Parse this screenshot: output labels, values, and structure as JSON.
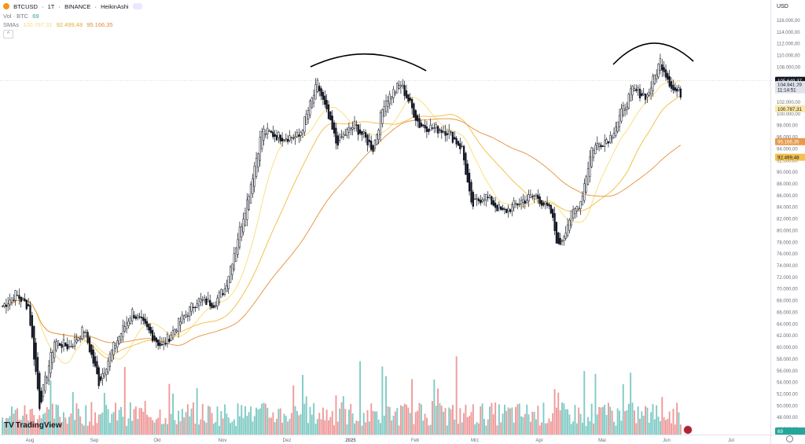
{
  "header": {
    "symbol": "BTCUSD",
    "interval": "1T",
    "exchange": "BINANCE",
    "chart_style": "HeikinAshi",
    "separator": "·",
    "vol_label": "Vol · BTC",
    "vol_value": "69",
    "sma_label": "SMAs",
    "sma_values": [
      "100.787,31",
      "92.499,48",
      "95.166,35"
    ]
  },
  "currency": "USD",
  "brand": "TradingView",
  "colors": {
    "up": "#26a69a",
    "down": "#ef5350",
    "candle": "#131722",
    "sma50": "#f9e07f",
    "sma100": "#f2c14e",
    "sma200": "#e69a4c",
    "vol_up": "#80cbc4",
    "vol_down": "#ef9a9a"
  },
  "icons": [
    "bitcoin-coin-icon",
    "eye-icon",
    "collapse-icon",
    "settings-icon",
    "flag-icon"
  ],
  "chart_data": {
    "type": "candlestick",
    "style": "HeikinAshi",
    "x_labels": [
      "Aug",
      "Sep",
      "Okt",
      "Nov",
      "Dez",
      "2025",
      "Feb",
      "Mrz",
      "Apr",
      "Mai",
      "Jun",
      "Jul"
    ],
    "y_ticks": [
      "116.000,00",
      "114.000,00",
      "112.000,00",
      "110.000,00",
      "108.000,00",
      "106.000,00",
      "104.000,00",
      "102.000,00",
      "100.000,00",
      "98.000,00",
      "96.000,00",
      "94.000,00",
      "92.000,00",
      "90.000,00",
      "88.000,00",
      "86.000,00",
      "84.000,00",
      "82.000,00",
      "80.000,00",
      "78.000,00",
      "76.000,00",
      "74.000,00",
      "72.000,00",
      "70.000,00",
      "68.000,00",
      "66.000,00",
      "64.000,00",
      "62.000,00",
      "60.000,00",
      "58.000,00",
      "56.000,00",
      "54.000,00",
      "52.000,00",
      "50.000,00",
      "48.000,00",
      "46.000,00"
    ],
    "ylim": [
      45000,
      117000
    ],
    "price_tags": [
      {
        "label": "105.649,37",
        "value": 105649,
        "bg": "#131722",
        "fg": "#ffffff"
      },
      {
        "label": "104.941,29",
        "value": 104941,
        "bg": "#e0e3eb",
        "fg": "#131722"
      },
      {
        "label": "11:14:51",
        "value": 104050,
        "bg": "#e0e3eb",
        "fg": "#131722"
      },
      {
        "label": "100.787,31",
        "value": 100787,
        "bg": "#fbe9a8",
        "fg": "#131722"
      },
      {
        "label": "95.166,35",
        "value": 95166,
        "bg": "#e69a4c",
        "fg": "#ffffff"
      },
      {
        "label": "92.499,48",
        "value": 92499,
        "bg": "#f2c14e",
        "fg": "#131722"
      },
      {
        "label": "69",
        "value": 45600,
        "bg": "#26a69a",
        "fg": "#ffffff"
      }
    ],
    "price_anchors": [
      [
        0,
        67000
      ],
      [
        7,
        69000
      ],
      [
        14,
        67000
      ],
      [
        20,
        50000
      ],
      [
        28,
        61000
      ],
      [
        36,
        60000
      ],
      [
        44,
        63000
      ],
      [
        52,
        54000
      ],
      [
        60,
        60000
      ],
      [
        70,
        66000
      ],
      [
        78,
        63000
      ],
      [
        86,
        60000
      ],
      [
        95,
        64000
      ],
      [
        105,
        68000
      ],
      [
        114,
        67500
      ],
      [
        120,
        70000
      ],
      [
        132,
        85000
      ],
      [
        140,
        97000
      ],
      [
        150,
        96000
      ],
      [
        160,
        96000
      ],
      [
        170,
        105000
      ],
      [
        180,
        95000
      ],
      [
        190,
        98000
      ],
      [
        200,
        94000
      ],
      [
        206,
        102000
      ],
      [
        215,
        105000
      ],
      [
        225,
        98000
      ],
      [
        232,
        97500
      ],
      [
        240,
        97000
      ],
      [
        248,
        94000
      ],
      [
        253,
        84000
      ],
      [
        260,
        86000
      ],
      [
        270,
        83000
      ],
      [
        280,
        85000
      ],
      [
        288,
        86000
      ],
      [
        296,
        83000
      ],
      [
        300,
        77000
      ],
      [
        306,
        82000
      ],
      [
        312,
        85000
      ],
      [
        318,
        94000
      ],
      [
        328,
        96000
      ],
      [
        340,
        104000
      ],
      [
        348,
        103000
      ],
      [
        355,
        109000
      ],
      [
        362,
        104000
      ],
      [
        366,
        103500
      ]
    ],
    "sma_period_ratio": {
      "sma50": 50,
      "sma100": 100,
      "sma200": 200
    },
    "volume_ylim": [
      0,
      100
    ],
    "annotations": [
      "arc-top-left",
      "arc-top-right"
    ]
  }
}
